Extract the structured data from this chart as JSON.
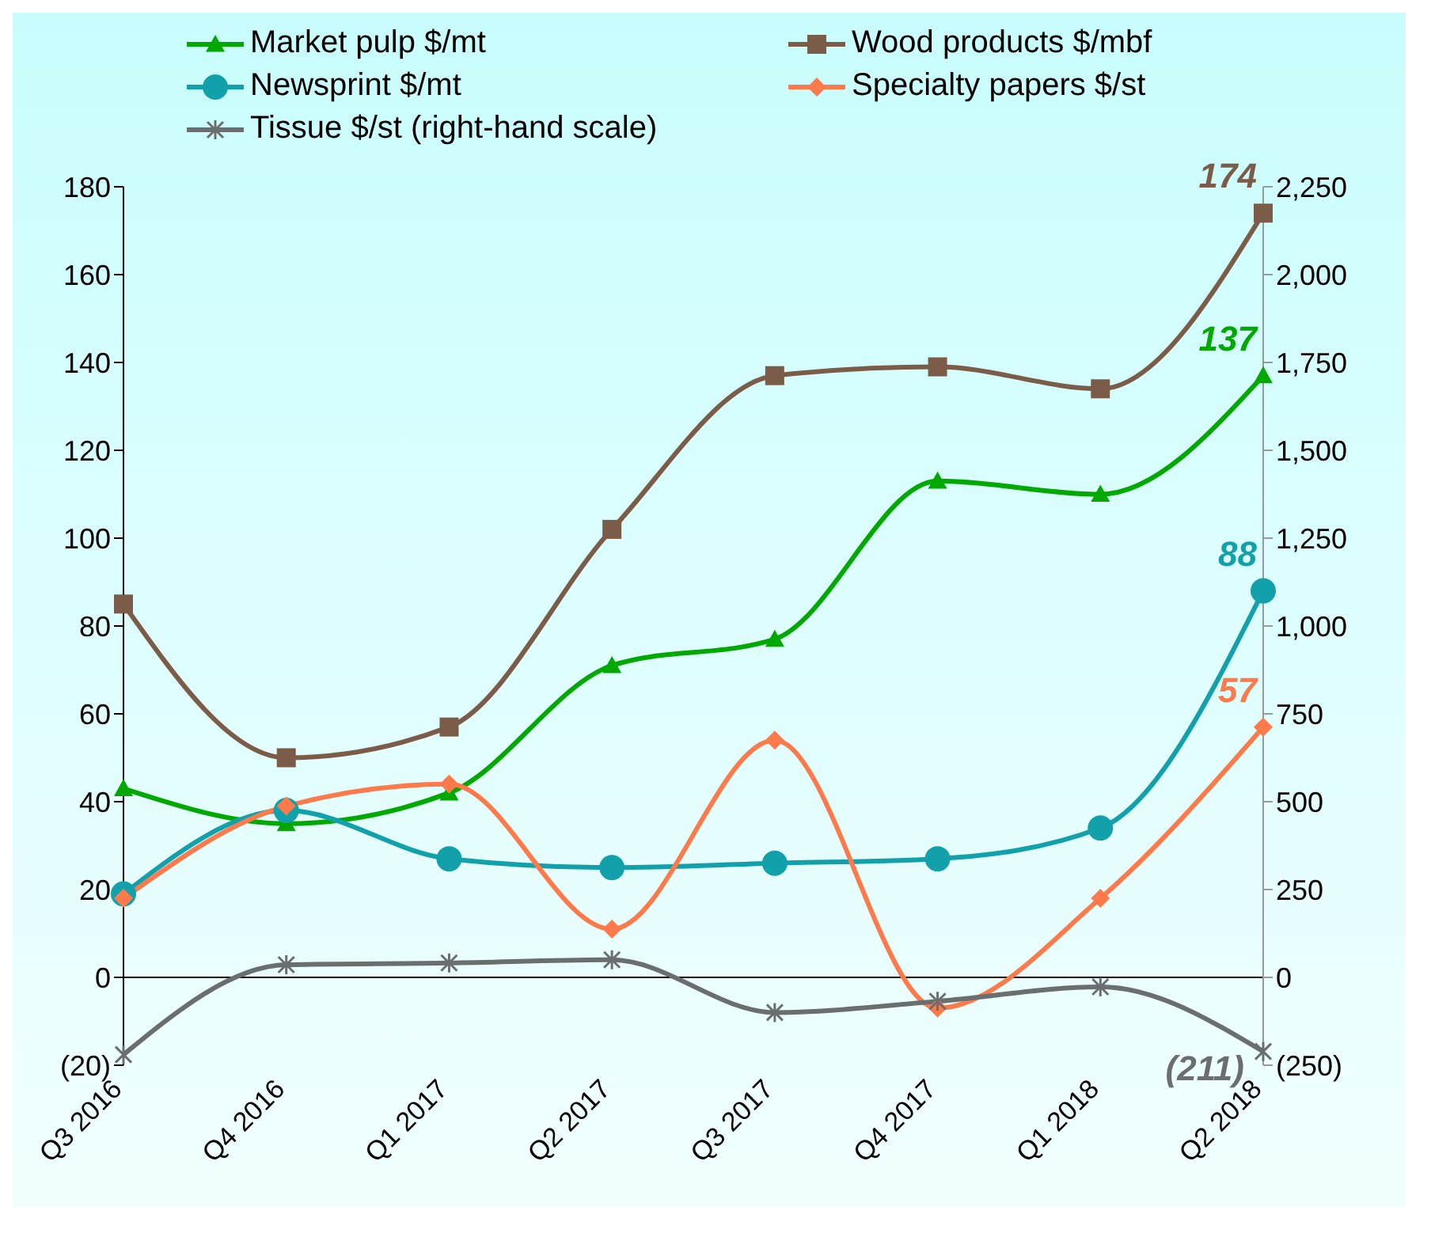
{
  "chart_data": {
    "type": "line",
    "categories": [
      "Q3 2016",
      "Q4 2016",
      "Q1 2017",
      "Q2 2017",
      "Q3 2017",
      "Q4 2017",
      "Q1 2018",
      "Q2 2018"
    ],
    "series": [
      {
        "name": "Market pulp $/mt",
        "color": "#00a800",
        "marker": "triangle",
        "values": [
          43,
          35,
          42,
          71,
          77,
          113,
          110,
          137
        ],
        "value_labels": [
          null,
          null,
          null,
          null,
          null,
          null,
          null,
          "137"
        ]
      },
      {
        "name": "Wood products $/mbf",
        "color": "#7b5c48",
        "marker": "square",
        "values": [
          85,
          50,
          57,
          102,
          137,
          139,
          134,
          174
        ],
        "value_labels": [
          null,
          null,
          null,
          null,
          null,
          null,
          null,
          "174"
        ]
      },
      {
        "name": "Newsprint $/mt",
        "color": "#12a0aa",
        "marker": "circle",
        "values": [
          19,
          38,
          27,
          25,
          26,
          27,
          34,
          88
        ],
        "value_labels": [
          null,
          null,
          null,
          null,
          null,
          null,
          null,
          "88"
        ]
      },
      {
        "name": "Specialty papers $/st",
        "color": "#ff7a4a",
        "marker": "diamond",
        "values": [
          18,
          39,
          44,
          11,
          54,
          -7,
          18,
          57
        ],
        "value_labels": [
          null,
          null,
          null,
          null,
          null,
          null,
          null,
          "57"
        ]
      },
      {
        "name": "Tissue $/st (right-hand scale)",
        "color": "#6a6e6e",
        "marker": "cross",
        "axis": "y2",
        "values": [
          -220,
          36,
          41,
          50,
          -100,
          -68,
          -27,
          -211
        ],
        "value_labels": [
          null,
          null,
          null,
          null,
          null,
          null,
          null,
          "(211)"
        ]
      }
    ],
    "ylim": [
      -20,
      180
    ],
    "yticks": [
      {
        "value": -20,
        "label": "(20)"
      },
      0,
      20,
      40,
      60,
      80,
      100,
      120,
      140,
      160,
      180
    ],
    "y2lim": [
      -250,
      2250
    ],
    "y2ticks": [
      {
        "value": -250,
        "label": "(250)"
      },
      0,
      250,
      500,
      750,
      {
        "value": 1000,
        "label": "1,000"
      },
      {
        "value": 1250,
        "label": "1,250"
      },
      {
        "value": 1500,
        "label": "1,500"
      },
      {
        "value": 1750,
        "label": "1,750"
      },
      {
        "value": 2000,
        "label": "2,000"
      },
      {
        "value": 2250,
        "label": "2,250"
      }
    ],
    "ref_lines": [
      {
        "axis": "y",
        "value": 0,
        "color": "#000000"
      }
    ],
    "legend": "top"
  }
}
